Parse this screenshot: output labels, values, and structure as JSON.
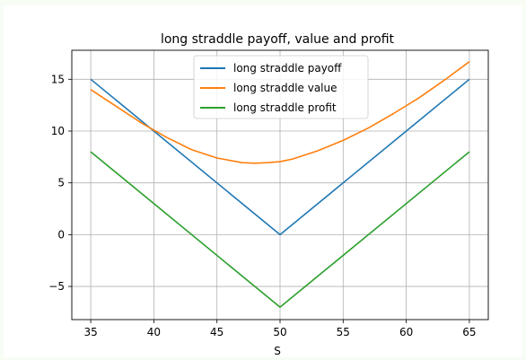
{
  "chart_data": {
    "type": "line",
    "title": "long straddle payoff, value and profit",
    "xlabel": "S",
    "ylabel": "",
    "xlim": [
      33.5,
      66.5
    ],
    "ylim": [
      -8.2,
      17.8
    ],
    "xticks": [
      35,
      40,
      45,
      50,
      55,
      60,
      65
    ],
    "yticks": [
      -5,
      0,
      5,
      10,
      15
    ],
    "ytick_labels": [
      "−5",
      "0",
      "5",
      "10",
      "15"
    ],
    "grid": true,
    "legend_position": "top-center",
    "series": [
      {
        "name": "long straddle payoff",
        "color": "#1f77b4",
        "x": [
          35,
          50,
          65
        ],
        "y": [
          15,
          0,
          15
        ]
      },
      {
        "name": "long straddle value",
        "color": "#ff7f0e",
        "x": [
          35,
          37,
          39,
          41,
          43,
          45,
          47,
          48,
          49,
          50,
          51,
          53,
          55,
          57,
          59,
          61,
          63,
          65
        ],
        "y": [
          14.0,
          12.4,
          10.8,
          9.4,
          8.2,
          7.4,
          6.95,
          6.9,
          6.95,
          7.05,
          7.3,
          8.1,
          9.1,
          10.3,
          11.7,
          13.2,
          14.9,
          16.7
        ]
      },
      {
        "name": "long straddle profit",
        "color": "#2ca02c",
        "x": [
          35,
          50,
          65
        ],
        "y": [
          8,
          -7,
          8
        ]
      }
    ]
  }
}
